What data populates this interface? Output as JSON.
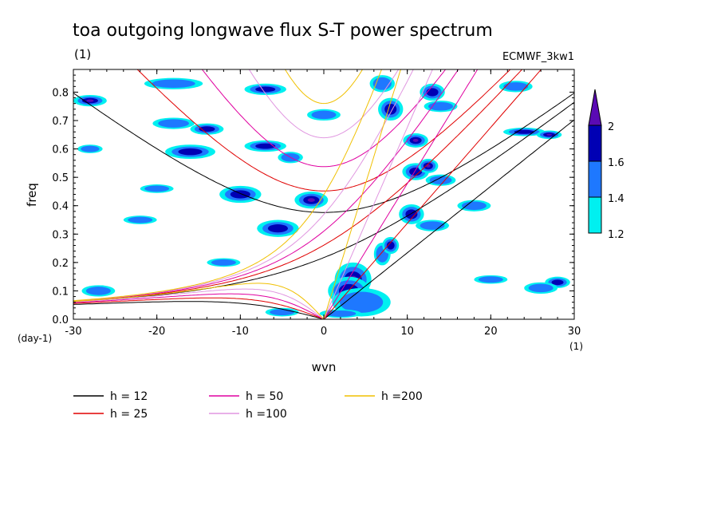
{
  "chart_data": {
    "type": "heatmap",
    "title": "toa outgoing longwave flux S-T power spectrum",
    "subtitle": "(1)",
    "source_label": "ECMWF_3kw1",
    "xlabel": "wvn",
    "ylabel": "freq",
    "x_unit": "(1)",
    "y_unit": "(day-1)",
    "xlim": [
      -30,
      30
    ],
    "ylim": [
      0,
      0.88
    ],
    "x_ticks": [
      -30,
      -20,
      -10,
      0,
      10,
      20,
      30
    ],
    "x_tick_labels": [
      "-30",
      "-20",
      "-10",
      "0",
      "10",
      "20",
      "30"
    ],
    "y_ticks": [
      0,
      0.1,
      0.2,
      0.3,
      0.4,
      0.5,
      0.6,
      0.7,
      0.8
    ],
    "y_tick_labels": [
      "0.0",
      "0.1",
      "0.2",
      "0.3",
      "0.4",
      "0.5",
      "0.6",
      "0.7",
      "0.8"
    ],
    "colorbar": {
      "levels": [
        1.2,
        1.4,
        1.6,
        2
      ],
      "level_labels": [
        "1.2",
        "1.4",
        "1.6",
        "2"
      ],
      "colors": [
        "#00f0f0",
        "#1e78ff",
        "#0000b4",
        "#5a0ab4"
      ]
    },
    "dispersion_series": [
      {
        "name": "h = 12",
        "h": 12,
        "color": "#000000"
      },
      {
        "name": "h = 25",
        "h": 25,
        "color": "#e00000"
      },
      {
        "name": "h = 50",
        "h": 50,
        "color": "#e000a0"
      },
      {
        "name": "h =100",
        "h": 100,
        "color": "#e096e0"
      },
      {
        "name": "h =200",
        "h": 200,
        "color": "#f0c000"
      }
    ],
    "blobs": [
      {
        "x": 3.5,
        "y": 0.14,
        "rx": 2.2,
        "ry": 0.06,
        "level": 3
      },
      {
        "x": 3.0,
        "y": 0.1,
        "rx": 2.5,
        "ry": 0.05,
        "level": 2
      },
      {
        "x": 5.0,
        "y": 0.07,
        "rx": 1.4,
        "ry": 0.03,
        "level": 2
      },
      {
        "x": 4.5,
        "y": 0.06,
        "rx": 3.5,
        "ry": 0.05,
        "level": 1
      },
      {
        "x": 7.0,
        "y": 0.23,
        "rx": 1.0,
        "ry": 0.04,
        "level": 1
      },
      {
        "x": 8.0,
        "y": 0.26,
        "rx": 1.0,
        "ry": 0.03,
        "level": 2
      },
      {
        "x": 10.5,
        "y": 0.37,
        "rx": 1.5,
        "ry": 0.035,
        "level": 2
      },
      {
        "x": 11.0,
        "y": 0.52,
        "rx": 1.6,
        "ry": 0.03,
        "level": 2
      },
      {
        "x": 12.5,
        "y": 0.54,
        "rx": 1.2,
        "ry": 0.025,
        "level": 3
      },
      {
        "x": 8.0,
        "y": 0.74,
        "rx": 1.5,
        "ry": 0.04,
        "level": 2
      },
      {
        "x": 11.0,
        "y": 0.63,
        "rx": 1.5,
        "ry": 0.025,
        "level": 3
      },
      {
        "x": 13.0,
        "y": 0.8,
        "rx": 1.5,
        "ry": 0.03,
        "level": 2
      },
      {
        "x": 14.0,
        "y": 0.49,
        "rx": 1.8,
        "ry": 0.02,
        "level": 1
      },
      {
        "x": 13.0,
        "y": 0.33,
        "rx": 2.0,
        "ry": 0.02,
        "level": 1
      },
      {
        "x": -1.5,
        "y": 0.42,
        "rx": 2.0,
        "ry": 0.03,
        "level": 3
      },
      {
        "x": -5.5,
        "y": 0.32,
        "rx": 2.5,
        "ry": 0.03,
        "level": 2
      },
      {
        "x": -10.0,
        "y": 0.44,
        "rx": 2.5,
        "ry": 0.03,
        "level": 2
      },
      {
        "x": -16.0,
        "y": 0.59,
        "rx": 3.0,
        "ry": 0.025,
        "level": 2
      },
      {
        "x": -18.0,
        "y": 0.69,
        "rx": 2.5,
        "ry": 0.02,
        "level": 1
      },
      {
        "x": -14.0,
        "y": 0.67,
        "rx": 2.0,
        "ry": 0.02,
        "level": 2
      },
      {
        "x": -7.0,
        "y": 0.61,
        "rx": 2.5,
        "ry": 0.02,
        "level": 2
      },
      {
        "x": -28.0,
        "y": 0.77,
        "rx": 2.0,
        "ry": 0.02,
        "level": 3
      },
      {
        "x": -18.0,
        "y": 0.83,
        "rx": 3.5,
        "ry": 0.02,
        "level": 1
      },
      {
        "x": -7.0,
        "y": 0.81,
        "rx": 2.5,
        "ry": 0.02,
        "level": 2
      },
      {
        "x": 0.0,
        "y": 0.72,
        "rx": 2.0,
        "ry": 0.02,
        "level": 1
      },
      {
        "x": 14.0,
        "y": 0.75,
        "rx": 2.0,
        "ry": 0.02,
        "level": 1
      },
      {
        "x": 24.0,
        "y": 0.66,
        "rx": 2.5,
        "ry": 0.015,
        "level": 2
      },
      {
        "x": 27.0,
        "y": 0.65,
        "rx": 1.5,
        "ry": 0.015,
        "level": 3
      },
      {
        "x": 28.0,
        "y": 0.13,
        "rx": 1.5,
        "ry": 0.02,
        "level": 2
      },
      {
        "x": 26.0,
        "y": 0.11,
        "rx": 2.0,
        "ry": 0.02,
        "level": 1
      },
      {
        "x": 2.0,
        "y": 0.02,
        "rx": 2.5,
        "ry": 0.015,
        "level": 1
      },
      {
        "x": -5.0,
        "y": 0.025,
        "rx": 2.0,
        "ry": 0.015,
        "level": 1
      },
      {
        "x": -27.0,
        "y": 0.1,
        "rx": 2.0,
        "ry": 0.02,
        "level": 1
      },
      {
        "x": -12.0,
        "y": 0.2,
        "rx": 2.0,
        "ry": 0.015,
        "level": 1
      },
      {
        "x": -28.0,
        "y": 0.6,
        "rx": 1.5,
        "ry": 0.015,
        "level": 1
      },
      {
        "x": -20.0,
        "y": 0.46,
        "rx": 2.0,
        "ry": 0.015,
        "level": 1
      },
      {
        "x": 18.0,
        "y": 0.4,
        "rx": 2.0,
        "ry": 0.02,
        "level": 1
      },
      {
        "x": 20.0,
        "y": 0.14,
        "rx": 2.0,
        "ry": 0.015,
        "level": 1
      },
      {
        "x": -22.0,
        "y": 0.35,
        "rx": 2.0,
        "ry": 0.015,
        "level": 1
      },
      {
        "x": -4.0,
        "y": 0.57,
        "rx": 1.5,
        "ry": 0.02,
        "level": 1
      },
      {
        "x": 23.0,
        "y": 0.82,
        "rx": 2.0,
        "ry": 0.02,
        "level": 1
      },
      {
        "x": 7.0,
        "y": 0.83,
        "rx": 1.5,
        "ry": 0.03,
        "level": 1
      }
    ]
  }
}
